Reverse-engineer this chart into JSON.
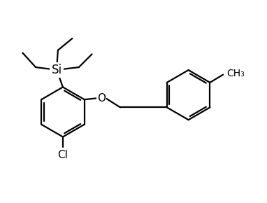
{
  "background_color": "#ffffff",
  "line_color": "#000000",
  "line_width": 1.6,
  "font_size_labels": 11,
  "figsize": [
    3.82,
    2.9
  ],
  "dpi": 100,
  "xlim": [
    0,
    10
  ],
  "ylim": [
    0,
    7.6
  ]
}
